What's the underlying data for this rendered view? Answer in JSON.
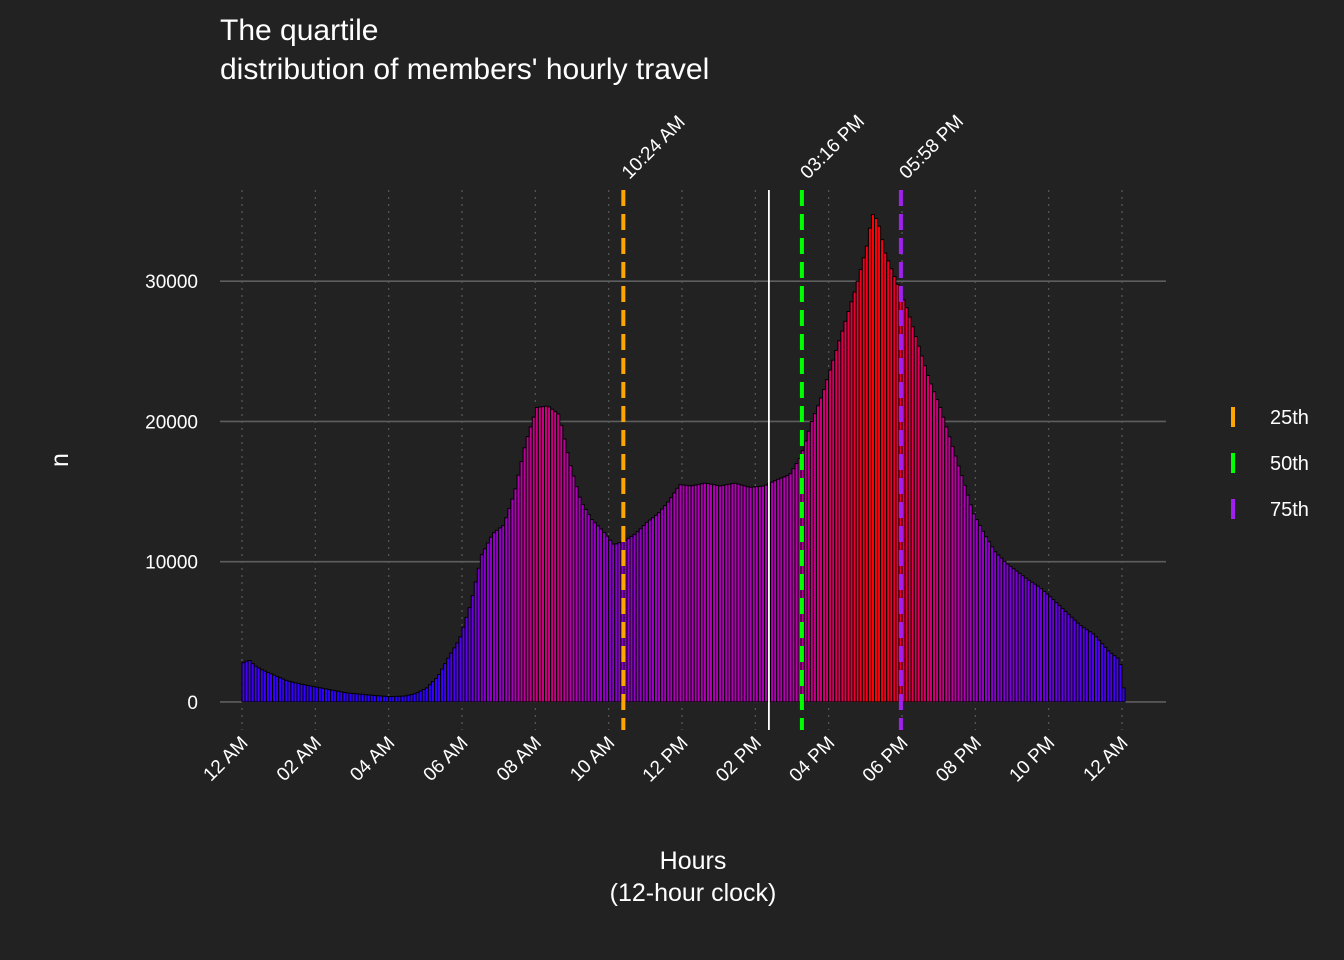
{
  "chart_data": {
    "type": "bar",
    "title_line1": "The quartile",
    "title_line2": "distribution of members' hourly travel",
    "xlabel_line1": "Hours",
    "xlabel_line2": "(12-hour clock)",
    "ylabel": "n",
    "x_unit": "hours",
    "xlim": [
      -0.6,
      25.2
    ],
    "ylim": [
      -2000,
      36500
    ],
    "x_ticks": [
      {
        "x": 0,
        "label": "12 AM"
      },
      {
        "x": 2,
        "label": "02 AM"
      },
      {
        "x": 4,
        "label": "04 AM"
      },
      {
        "x": 6,
        "label": "06 AM"
      },
      {
        "x": 8,
        "label": "08 AM"
      },
      {
        "x": 10,
        "label": "10 AM"
      },
      {
        "x": 12,
        "label": "12 PM"
      },
      {
        "x": 14,
        "label": "02 PM"
      },
      {
        "x": 16,
        "label": "04 PM"
      },
      {
        "x": 18,
        "label": "06 PM"
      },
      {
        "x": 20,
        "label": "08 PM"
      },
      {
        "x": 22,
        "label": "10 PM"
      },
      {
        "x": 24,
        "label": "12 AM"
      }
    ],
    "y_ticks": [
      0,
      10000,
      20000,
      30000
    ],
    "grid_major_y": true,
    "grid_x": "dotted",
    "bar_color_low": "#2b00ff",
    "bar_color_mid": "#b000b0",
    "bar_color_high": "#ff0000",
    "bar_outline": "#000000",
    "profile": [
      [
        0.0,
        2800
      ],
      [
        0.15,
        3000
      ],
      [
        0.3,
        2600
      ],
      [
        0.5,
        2300
      ],
      [
        0.8,
        1950
      ],
      [
        1.2,
        1500
      ],
      [
        1.6,
        1250
      ],
      [
        2.0,
        1050
      ],
      [
        2.4,
        850
      ],
      [
        2.8,
        650
      ],
      [
        3.2,
        550
      ],
      [
        3.6,
        450
      ],
      [
        4.0,
        380
      ],
      [
        4.4,
        420
      ],
      [
        4.7,
        600
      ],
      [
        5.0,
        1000
      ],
      [
        5.3,
        1800
      ],
      [
        5.6,
        3200
      ],
      [
        5.9,
        4500
      ],
      [
        6.2,
        7000
      ],
      [
        6.5,
        10500
      ],
      [
        6.8,
        12000
      ],
      [
        7.1,
        12600
      ],
      [
        7.4,
        15000
      ],
      [
        7.7,
        18500
      ],
      [
        8.0,
        21000
      ],
      [
        8.3,
        21100
      ],
      [
        8.6,
        20500
      ],
      [
        8.9,
        17000
      ],
      [
        9.2,
        14300
      ],
      [
        9.5,
        13000
      ],
      [
        9.8,
        12200
      ],
      [
        10.1,
        11200
      ],
      [
        10.4,
        11500
      ],
      [
        10.7,
        12000
      ],
      [
        11.0,
        12800
      ],
      [
        11.3,
        13400
      ],
      [
        11.6,
        14300
      ],
      [
        11.9,
        15500
      ],
      [
        12.2,
        15400
      ],
      [
        12.6,
        15600
      ],
      [
        13.0,
        15400
      ],
      [
        13.4,
        15600
      ],
      [
        13.8,
        15300
      ],
      [
        14.2,
        15400
      ],
      [
        14.6,
        15900
      ],
      [
        14.9,
        16200
      ],
      [
        15.2,
        17500
      ],
      [
        15.5,
        20000
      ],
      [
        15.8,
        22000
      ],
      [
        16.1,
        24500
      ],
      [
        16.4,
        27000
      ],
      [
        16.7,
        29500
      ],
      [
        17.0,
        32500
      ],
      [
        17.15,
        34800
      ],
      [
        17.3,
        34300
      ],
      [
        17.5,
        32000
      ],
      [
        17.8,
        30000
      ],
      [
        18.1,
        28000
      ],
      [
        18.4,
        25500
      ],
      [
        18.7,
        23000
      ],
      [
        19.0,
        21000
      ],
      [
        19.3,
        18500
      ],
      [
        19.6,
        16000
      ],
      [
        19.9,
        13500
      ],
      [
        20.2,
        12000
      ],
      [
        20.5,
        10700
      ],
      [
        20.8,
        9900
      ],
      [
        21.1,
        9300
      ],
      [
        21.4,
        8700
      ],
      [
        21.7,
        8200
      ],
      [
        22.0,
        7500
      ],
      [
        22.4,
        6500
      ],
      [
        22.8,
        5500
      ],
      [
        23.2,
        4800
      ],
      [
        23.6,
        3600
      ],
      [
        23.9,
        3000
      ],
      [
        24.0,
        1000
      ]
    ],
    "vline": {
      "x": 14.37,
      "color": "#ffffff"
    },
    "quartiles": [
      {
        "name": "25th",
        "x": 10.4,
        "label": "10:24 AM",
        "color": "#ffa500"
      },
      {
        "name": "50th",
        "x": 15.27,
        "label": "03:16 PM",
        "color": "#00ff00"
      },
      {
        "name": "75th",
        "x": 17.97,
        "label": "05:58 PM",
        "color": "#a020f0"
      }
    ],
    "legend_position": "right"
  }
}
